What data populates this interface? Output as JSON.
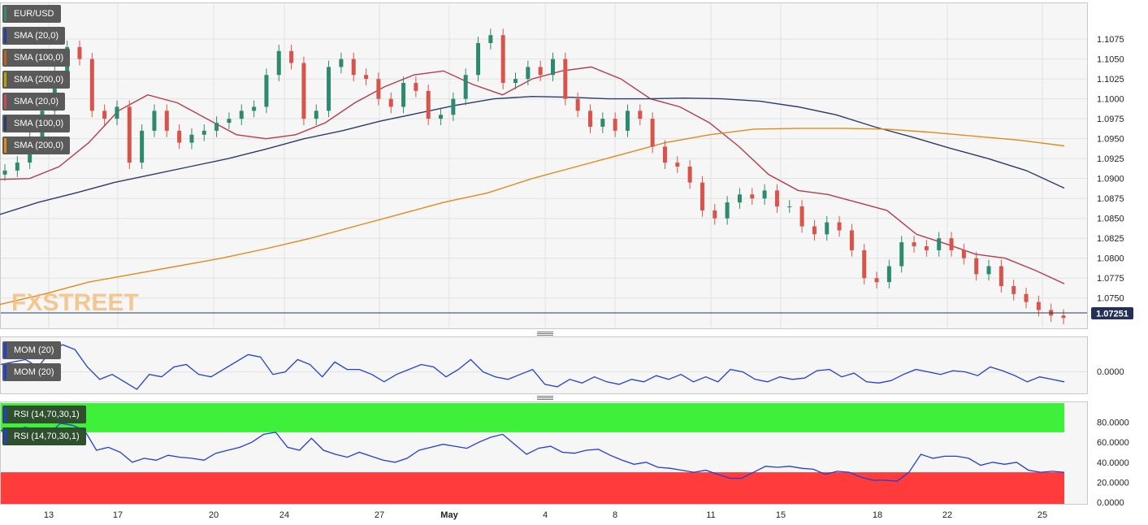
{
  "chart_data": [
    {
      "type": "candlestick",
      "symbol": "EUR/USD",
      "last_price_label": "1.07251",
      "y_ticks": [
        "1.0750",
        "1.0775",
        "1.0800",
        "1.0825",
        "1.0850",
        "1.0875",
        "1.0900",
        "1.0925",
        "1.0950",
        "1.0975",
        "1.1000",
        "1.1025",
        "1.1050",
        "1.1075"
      ],
      "ylim": [
        1.0712,
        1.112
      ],
      "x_tick_labels": [
        "13",
        "17",
        "20",
        "24",
        "27",
        "May",
        "4",
        "8",
        "11",
        "15",
        "18",
        "22",
        "25"
      ],
      "watermark": "FXSTREET",
      "indicators": [
        {
          "name": "SMA (20,0)",
          "color": "#2d3a9e"
        },
        {
          "name": "SMA (100,0)",
          "color": "#c0601a"
        },
        {
          "name": "SMA (200,0)",
          "color": "#b8a300"
        },
        {
          "name": "SMA (20,0)",
          "color": "#c94a5a"
        },
        {
          "name": "SMA (100,0)",
          "color": "#2d3a6e"
        },
        {
          "name": "SMA (200,0)",
          "color": "#e08a1a"
        }
      ],
      "series": [
        {
          "name": "SMA (20,0)",
          "color": "#b83a4e",
          "values": [
            1.0899,
            1.09,
            1.0915,
            1.0945,
            1.0985,
            1.1005,
            1.0995,
            1.0975,
            1.0955,
            1.095,
            1.0955,
            1.097,
            1.0995,
            1.1015,
            1.103,
            1.1035,
            1.1018,
            1.1005,
            1.1025,
            1.1035,
            1.104,
            1.1025,
            1.1,
            1.099,
            1.097,
            1.094,
            1.0905,
            1.0885,
            1.088,
            1.087,
            1.086,
            1.083,
            1.0818,
            1.0805,
            1.08,
            1.0785,
            1.0768
          ]
        },
        {
          "name": "SMA (100,0)",
          "color": "#2d3a6e",
          "values": [
            1.0855,
            1.087,
            1.0882,
            1.0895,
            1.0905,
            1.0915,
            1.0925,
            1.0937,
            1.095,
            1.096,
            1.0972,
            1.0982,
            1.0992,
            1.1,
            1.1003,
            1.1002,
            1.1,
            1.1,
            1.1001,
            1.1,
            1.0997,
            1.099,
            1.098,
            1.0965,
            1.0952,
            1.0938,
            1.0925,
            1.091,
            1.0888
          ]
        },
        {
          "name": "SMA (200,0)",
          "color": "#e08a1a",
          "values": [
            1.0742,
            1.0755,
            1.077,
            1.078,
            1.079,
            1.08,
            1.0812,
            1.0825,
            1.084,
            1.0855,
            1.087,
            1.0882,
            1.09,
            1.0915,
            1.093,
            1.0945,
            1.0955,
            1.0962,
            1.0963,
            1.0963,
            1.0962,
            1.0958,
            1.0953,
            1.0948,
            1.0941
          ]
        }
      ]
    },
    {
      "type": "line",
      "indicator": "MOM (20)",
      "color": "#1f3fd6",
      "y_ticks": [
        "0.0000"
      ],
      "values": [
        0.6,
        0.8,
        1.0,
        0.4,
        1.6,
        2.2,
        1.8,
        0.4,
        -0.6,
        -0.2,
        -0.8,
        -1.4,
        -0.2,
        -0.4,
        0.4,
        0.6,
        -0.2,
        -0.4,
        0.2,
        0.8,
        1.4,
        1.2,
        -0.2,
        0.0,
        1.0,
        0.6,
        -0.4,
        0.8,
        0.2,
        0.2,
        -0.2,
        -0.8,
        -0.2,
        0.2,
        0.6,
        0.4,
        -0.4,
        0.2,
        1.0,
        0.0,
        -0.4,
        -0.6,
        -0.2,
        0.2,
        -1.0,
        -1.2,
        -0.6,
        -0.9,
        -0.4,
        -0.8,
        -1.0,
        -0.6,
        -0.8,
        -0.3,
        -0.6,
        -0.2,
        -0.8,
        -0.4,
        -0.8,
        0.2,
        0.0,
        -0.6,
        -0.8,
        -0.4,
        -0.6,
        -0.5,
        0.1,
        0.2,
        -0.4,
        -0.1,
        -0.8,
        -0.9,
        -0.7,
        -0.2,
        0.2,
        0.0,
        -0.2,
        0.1,
        0.0,
        -0.3,
        0.4,
        0.1,
        -0.3,
        -0.8,
        -0.4,
        -0.6,
        -0.8
      ]
    },
    {
      "type": "line",
      "indicator": "RSI (14,70,30,1)",
      "color": "#1f3fd6",
      "y_ticks": [
        "0.0000",
        "20.0000",
        "40.0000",
        "60.0000",
        "80.0000"
      ],
      "ylim": [
        0,
        100
      ],
      "overbought": 70,
      "oversold": 30,
      "values": [
        72,
        70,
        75,
        73,
        68,
        79,
        77,
        72,
        52,
        55,
        50,
        40,
        44,
        42,
        47,
        45,
        44,
        42,
        49,
        52,
        55,
        60,
        68,
        70,
        55,
        52,
        64,
        52,
        48,
        45,
        50,
        46,
        42,
        40,
        44,
        52,
        55,
        58,
        56,
        54,
        60,
        65,
        68,
        58,
        48,
        54,
        56,
        50,
        49,
        52,
        53,
        47,
        42,
        38,
        40,
        35,
        34,
        32,
        30,
        32,
        28,
        24,
        24,
        30,
        36,
        35,
        36,
        34,
        33,
        28,
        31,
        30,
        25,
        22,
        22,
        21,
        30,
        48,
        44,
        46,
        46,
        44,
        37,
        40,
        38,
        40,
        32,
        30,
        31,
        30
      ]
    }
  ]
}
